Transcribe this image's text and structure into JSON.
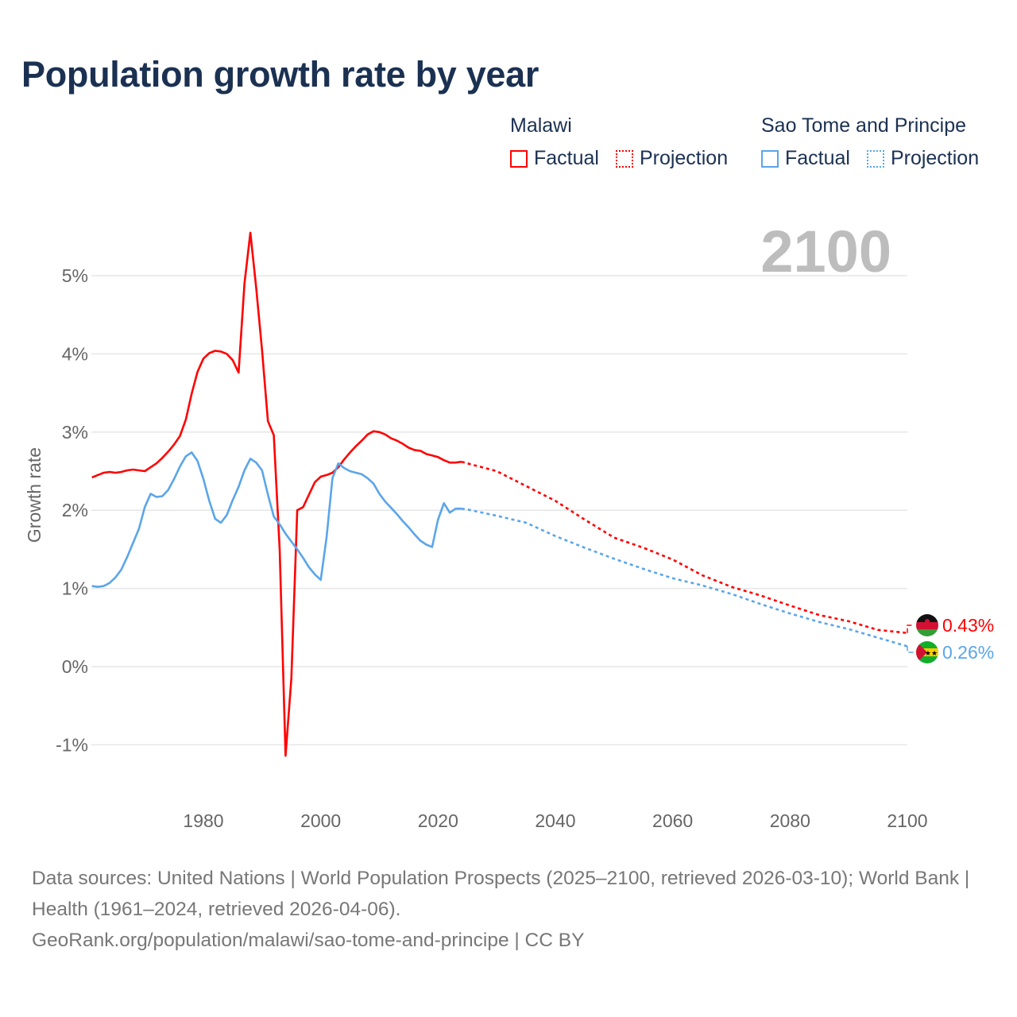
{
  "title": "Population growth rate by year",
  "legend": [
    {
      "group": "Malawi",
      "color": "#ff0000",
      "items": [
        "Factual",
        "Projection"
      ]
    },
    {
      "group": "Sao Tome and Principe",
      "color": "#5aa5ea",
      "items": [
        "Factual",
        "Projection"
      ]
    }
  ],
  "footer": {
    "line1": "Data sources: United Nations | World Population Prospects (2025–2100, retrieved 2026-03-10); World Bank | Health (1961–2024, retrieved 2026-04-06).",
    "line2": "GeoRank.org/population/malawi/sao-tome-and-principe | CC BY"
  },
  "chart_data": {
    "type": "line",
    "title": "Population growth rate by year",
    "ylabel": "Growth rate",
    "xlabel": "",
    "year_label": "2100",
    "xlim": [
      1961,
      2100
    ],
    "ylim": [
      -1.5,
      5.8
    ],
    "x_ticks": [
      1980,
      2000,
      2020,
      2040,
      2060,
      2080,
      2100
    ],
    "y_ticks": [
      -1,
      0,
      1,
      2,
      3,
      4,
      5
    ],
    "y_tick_labels": [
      "-1%",
      "0%",
      "1%",
      "2%",
      "3%",
      "4%",
      "5%"
    ],
    "grid": true,
    "series": [
      {
        "name": "Malawi",
        "color": "#ff0000",
        "end_label": "0.43%",
        "factual": {
          "x": [
            1961,
            1962,
            1963,
            1964,
            1965,
            1966,
            1967,
            1968,
            1969,
            1970,
            1971,
            1972,
            1973,
            1974,
            1975,
            1976,
            1977,
            1978,
            1979,
            1980,
            1981,
            1982,
            1983,
            1984,
            1985,
            1986,
            1987,
            1988,
            1989,
            1990,
            1991,
            1992,
            1993,
            1994,
            1995,
            1996,
            1997,
            1998,
            1999,
            2000,
            2001,
            2002,
            2003,
            2004,
            2005,
            2006,
            2007,
            2008,
            2009,
            2010,
            2011,
            2012,
            2013,
            2014,
            2015,
            2016,
            2017,
            2018,
            2019,
            2020,
            2021,
            2022,
            2023,
            2024
          ],
          "y": [
            2.42,
            2.45,
            2.48,
            2.49,
            2.48,
            2.49,
            2.51,
            2.52,
            2.51,
            2.5,
            2.55,
            2.6,
            2.67,
            2.75,
            2.84,
            2.95,
            3.16,
            3.49,
            3.77,
            3.94,
            4.01,
            4.04,
            4.03,
            4.0,
            3.92,
            3.76,
            4.9,
            5.55,
            4.85,
            4.05,
            3.14,
            2.96,
            1.5,
            -1.14,
            -0.15,
            2.0,
            2.04,
            2.2,
            2.36,
            2.43,
            2.45,
            2.48,
            2.55,
            2.65,
            2.74,
            2.82,
            2.89,
            2.97,
            3.01,
            3.0,
            2.97,
            2.92,
            2.89,
            2.85,
            2.8,
            2.77,
            2.76,
            2.72,
            2.7,
            2.68,
            2.64,
            2.61,
            2.61,
            2.62
          ]
        },
        "projection": {
          "x": [
            2024,
            2025,
            2030,
            2035,
            2040,
            2045,
            2050,
            2055,
            2060,
            2065,
            2070,
            2075,
            2080,
            2085,
            2090,
            2095,
            2100
          ],
          "y": [
            2.62,
            2.6,
            2.5,
            2.31,
            2.12,
            1.88,
            1.65,
            1.52,
            1.37,
            1.17,
            1.02,
            0.91,
            0.78,
            0.66,
            0.58,
            0.47,
            0.43
          ]
        }
      },
      {
        "name": "Sao Tome and Principe",
        "color": "#5aa5ea",
        "end_label": "0.26%",
        "factual": {
          "x": [
            1961,
            1962,
            1963,
            1964,
            1965,
            1966,
            1967,
            1968,
            1969,
            1970,
            1971,
            1972,
            1973,
            1974,
            1975,
            1976,
            1977,
            1978,
            1979,
            1980,
            1981,
            1982,
            1983,
            1984,
            1985,
            1986,
            1987,
            1988,
            1989,
            1990,
            1991,
            1992,
            1993,
            1994,
            1995,
            1996,
            1997,
            1998,
            1999,
            2000,
            2001,
            2002,
            2003,
            2004,
            2005,
            2006,
            2007,
            2008,
            2009,
            2010,
            2011,
            2012,
            2013,
            2014,
            2015,
            2016,
            2017,
            2018,
            2019,
            2020,
            2021,
            2022,
            2023,
            2024
          ],
          "y": [
            1.03,
            1.02,
            1.03,
            1.07,
            1.14,
            1.24,
            1.4,
            1.58,
            1.76,
            2.04,
            2.21,
            2.17,
            2.18,
            2.26,
            2.4,
            2.56,
            2.69,
            2.74,
            2.63,
            2.4,
            2.12,
            1.89,
            1.84,
            1.94,
            2.13,
            2.3,
            2.51,
            2.66,
            2.61,
            2.51,
            2.2,
            1.92,
            1.82,
            1.7,
            1.6,
            1.5,
            1.39,
            1.27,
            1.18,
            1.11,
            1.65,
            2.41,
            2.6,
            2.54,
            2.5,
            2.48,
            2.46,
            2.41,
            2.34,
            2.21,
            2.11,
            2.03,
            1.95,
            1.86,
            1.78,
            1.69,
            1.61,
            1.56,
            1.53,
            1.88,
            2.09,
            1.97,
            2.02,
            2.02
          ]
        },
        "projection": {
          "x": [
            2024,
            2025,
            2030,
            2035,
            2040,
            2045,
            2050,
            2055,
            2060,
            2065,
            2070,
            2075,
            2080,
            2085,
            2090,
            2095,
            2100
          ],
          "y": [
            2.02,
            2.01,
            1.93,
            1.84,
            1.67,
            1.52,
            1.38,
            1.25,
            1.13,
            1.04,
            0.93,
            0.8,
            0.68,
            0.57,
            0.48,
            0.37,
            0.26
          ]
        }
      }
    ]
  }
}
